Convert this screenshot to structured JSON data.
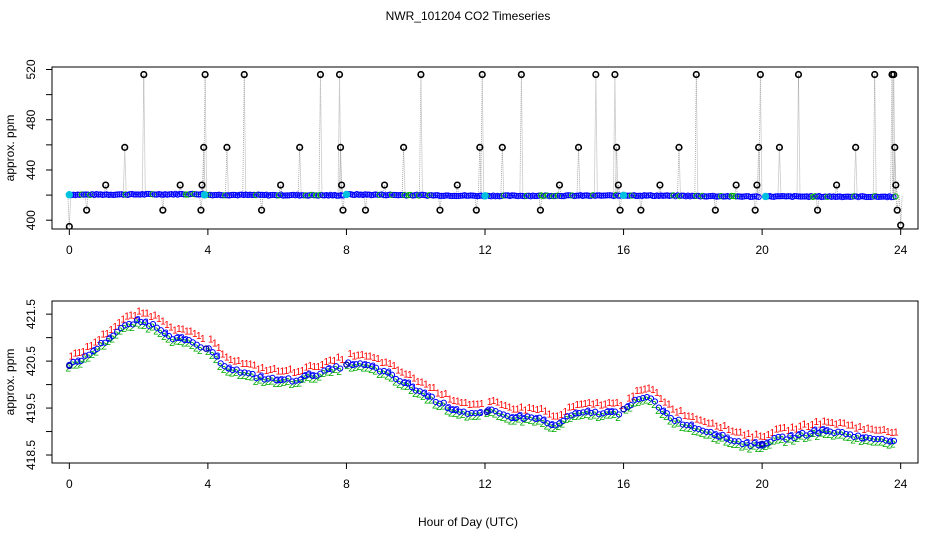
{
  "title": "NWR_101204  CO2 Timeseries",
  "xlabel": "Hour of Day (UTC)",
  "colors": {
    "axis": "#000000",
    "connector": "#9a9a9a",
    "outlier_marker": "#000000",
    "raw_marker": "#0000ff",
    "raw_fill": "#00c0e0",
    "raw_green": "#00aa00",
    "label1": "#ff0000",
    "label2": "#00aa00",
    "label3": "#0000ff"
  },
  "chart_data": [
    {
      "name": "top-panel",
      "type": "scatter",
      "ylabel": "approx. ppm",
      "xlim": [
        -0.5,
        24.5
      ],
      "ylim": [
        393,
        522
      ],
      "xticks": [
        0,
        4,
        8,
        12,
        16,
        20,
        24
      ],
      "yticks": [
        400,
        440,
        480,
        520
      ],
      "ytick_minor": [
        420,
        460,
        500
      ],
      "baseline_segments": [
        {
          "x0": 0.0,
          "x1": 3.85,
          "y0": 420.3,
          "y1": 420.8
        },
        {
          "x0": 3.9,
          "x1": 7.9,
          "y0": 420.2,
          "y1": 419.8
        },
        {
          "x0": 8.0,
          "x1": 11.95,
          "y0": 420.5,
          "y1": 419.4
        },
        {
          "x0": 12.0,
          "x1": 15.9,
          "y0": 419.4,
          "y1": 419.6
        },
        {
          "x0": 16.0,
          "x1": 19.9,
          "y0": 419.8,
          "y1": 418.8
        },
        {
          "x0": 20.1,
          "x1": 23.85,
          "y0": 418.9,
          "y1": 418.7
        }
      ],
      "flagged_points": [
        [
          0.0,
          395
        ],
        [
          0.5,
          408
        ],
        [
          1.05,
          428
        ],
        [
          1.6,
          458
        ],
        [
          2.15,
          516
        ],
        [
          2.7,
          408
        ],
        [
          3.2,
          428
        ],
        [
          3.8,
          408
        ],
        [
          3.83,
          428
        ],
        [
          3.88,
          458
        ],
        [
          3.92,
          516
        ],
        [
          4.55,
          458
        ],
        [
          5.05,
          516
        ],
        [
          5.55,
          408
        ],
        [
          6.1,
          428
        ],
        [
          6.65,
          458
        ],
        [
          7.25,
          516
        ],
        [
          7.8,
          516
        ],
        [
          7.83,
          458
        ],
        [
          7.86,
          428
        ],
        [
          7.9,
          408
        ],
        [
          8.55,
          408
        ],
        [
          9.1,
          428
        ],
        [
          9.65,
          458
        ],
        [
          10.15,
          516
        ],
        [
          10.7,
          408
        ],
        [
          11.2,
          428
        ],
        [
          11.75,
          408
        ],
        [
          11.85,
          458
        ],
        [
          11.92,
          516
        ],
        [
          12.5,
          458
        ],
        [
          13.05,
          516
        ],
        [
          13.6,
          408
        ],
        [
          14.15,
          428
        ],
        [
          14.7,
          458
        ],
        [
          15.2,
          516
        ],
        [
          15.75,
          516
        ],
        [
          15.8,
          458
        ],
        [
          15.85,
          428
        ],
        [
          15.9,
          408
        ],
        [
          16.5,
          408
        ],
        [
          17.05,
          428
        ],
        [
          17.6,
          458
        ],
        [
          18.1,
          516
        ],
        [
          18.65,
          408
        ],
        [
          19.25,
          428
        ],
        [
          19.8,
          408
        ],
        [
          19.85,
          428
        ],
        [
          19.9,
          458
        ],
        [
          19.95,
          516
        ],
        [
          20.5,
          458
        ],
        [
          21.05,
          516
        ],
        [
          21.6,
          408
        ],
        [
          22.15,
          428
        ],
        [
          22.7,
          458
        ],
        [
          23.25,
          516
        ],
        [
          23.75,
          516
        ],
        [
          23.8,
          516
        ],
        [
          23.83,
          458
        ],
        [
          23.86,
          428
        ],
        [
          23.9,
          408
        ],
        [
          24.0,
          396
        ]
      ]
    },
    {
      "name": "bottom-panel",
      "type": "scatter",
      "ylabel": "approx. ppm",
      "xlim": [
        -0.5,
        24.5
      ],
      "ylim": [
        418.33,
        421.78
      ],
      "xticks": [
        0,
        4,
        8,
        12,
        16,
        20,
        24
      ],
      "yticks": [
        418.5,
        419.5,
        420.5,
        421.5
      ],
      "ytick_minor": [
        419.0,
        420.0,
        421.0
      ],
      "series_labels": [
        "1",
        "2",
        "3"
      ],
      "key_points": [
        [
          0.0,
          420.4
        ],
        [
          0.5,
          420.6
        ],
        [
          1.0,
          420.9
        ],
        [
          1.5,
          421.2
        ],
        [
          2.0,
          421.35
        ],
        [
          2.5,
          421.25
        ],
        [
          3.0,
          421.0
        ],
        [
          3.5,
          420.9
        ],
        [
          4.0,
          420.75
        ],
        [
          4.5,
          420.4
        ],
        [
          5.0,
          420.25
        ],
        [
          5.5,
          420.15
        ],
        [
          6.0,
          420.1
        ],
        [
          6.5,
          420.1
        ],
        [
          7.0,
          420.2
        ],
        [
          7.5,
          420.3
        ],
        [
          7.9,
          420.4
        ],
        [
          8.1,
          420.45
        ],
        [
          8.6,
          420.4
        ],
        [
          9.0,
          420.3
        ],
        [
          9.5,
          420.1
        ],
        [
          10.0,
          419.9
        ],
        [
          10.5,
          419.7
        ],
        [
          11.0,
          419.5
        ],
        [
          11.5,
          419.4
        ],
        [
          11.95,
          419.35
        ],
        [
          12.1,
          419.45
        ],
        [
          12.5,
          419.35
        ],
        [
          13.0,
          419.3
        ],
        [
          13.5,
          419.3
        ],
        [
          14.0,
          419.1
        ],
        [
          14.5,
          419.35
        ],
        [
          15.0,
          419.4
        ],
        [
          15.5,
          419.4
        ],
        [
          15.9,
          419.4
        ],
        [
          16.1,
          419.55
        ],
        [
          16.5,
          419.7
        ],
        [
          16.8,
          419.7
        ],
        [
          17.2,
          419.4
        ],
        [
          17.5,
          419.25
        ],
        [
          18.0,
          419.1
        ],
        [
          18.5,
          419.0
        ],
        [
          19.0,
          418.85
        ],
        [
          19.5,
          418.75
        ],
        [
          19.9,
          418.7
        ],
        [
          20.2,
          418.8
        ],
        [
          20.5,
          418.85
        ],
        [
          21.0,
          418.9
        ],
        [
          21.5,
          419.0
        ],
        [
          22.0,
          419.0
        ],
        [
          22.5,
          418.95
        ],
        [
          23.0,
          418.85
        ],
        [
          23.5,
          418.85
        ],
        [
          23.85,
          418.8
        ]
      ],
      "gaps_after_x": [
        3.85,
        7.9,
        11.95,
        15.9,
        19.9,
        23.85
      ]
    }
  ]
}
